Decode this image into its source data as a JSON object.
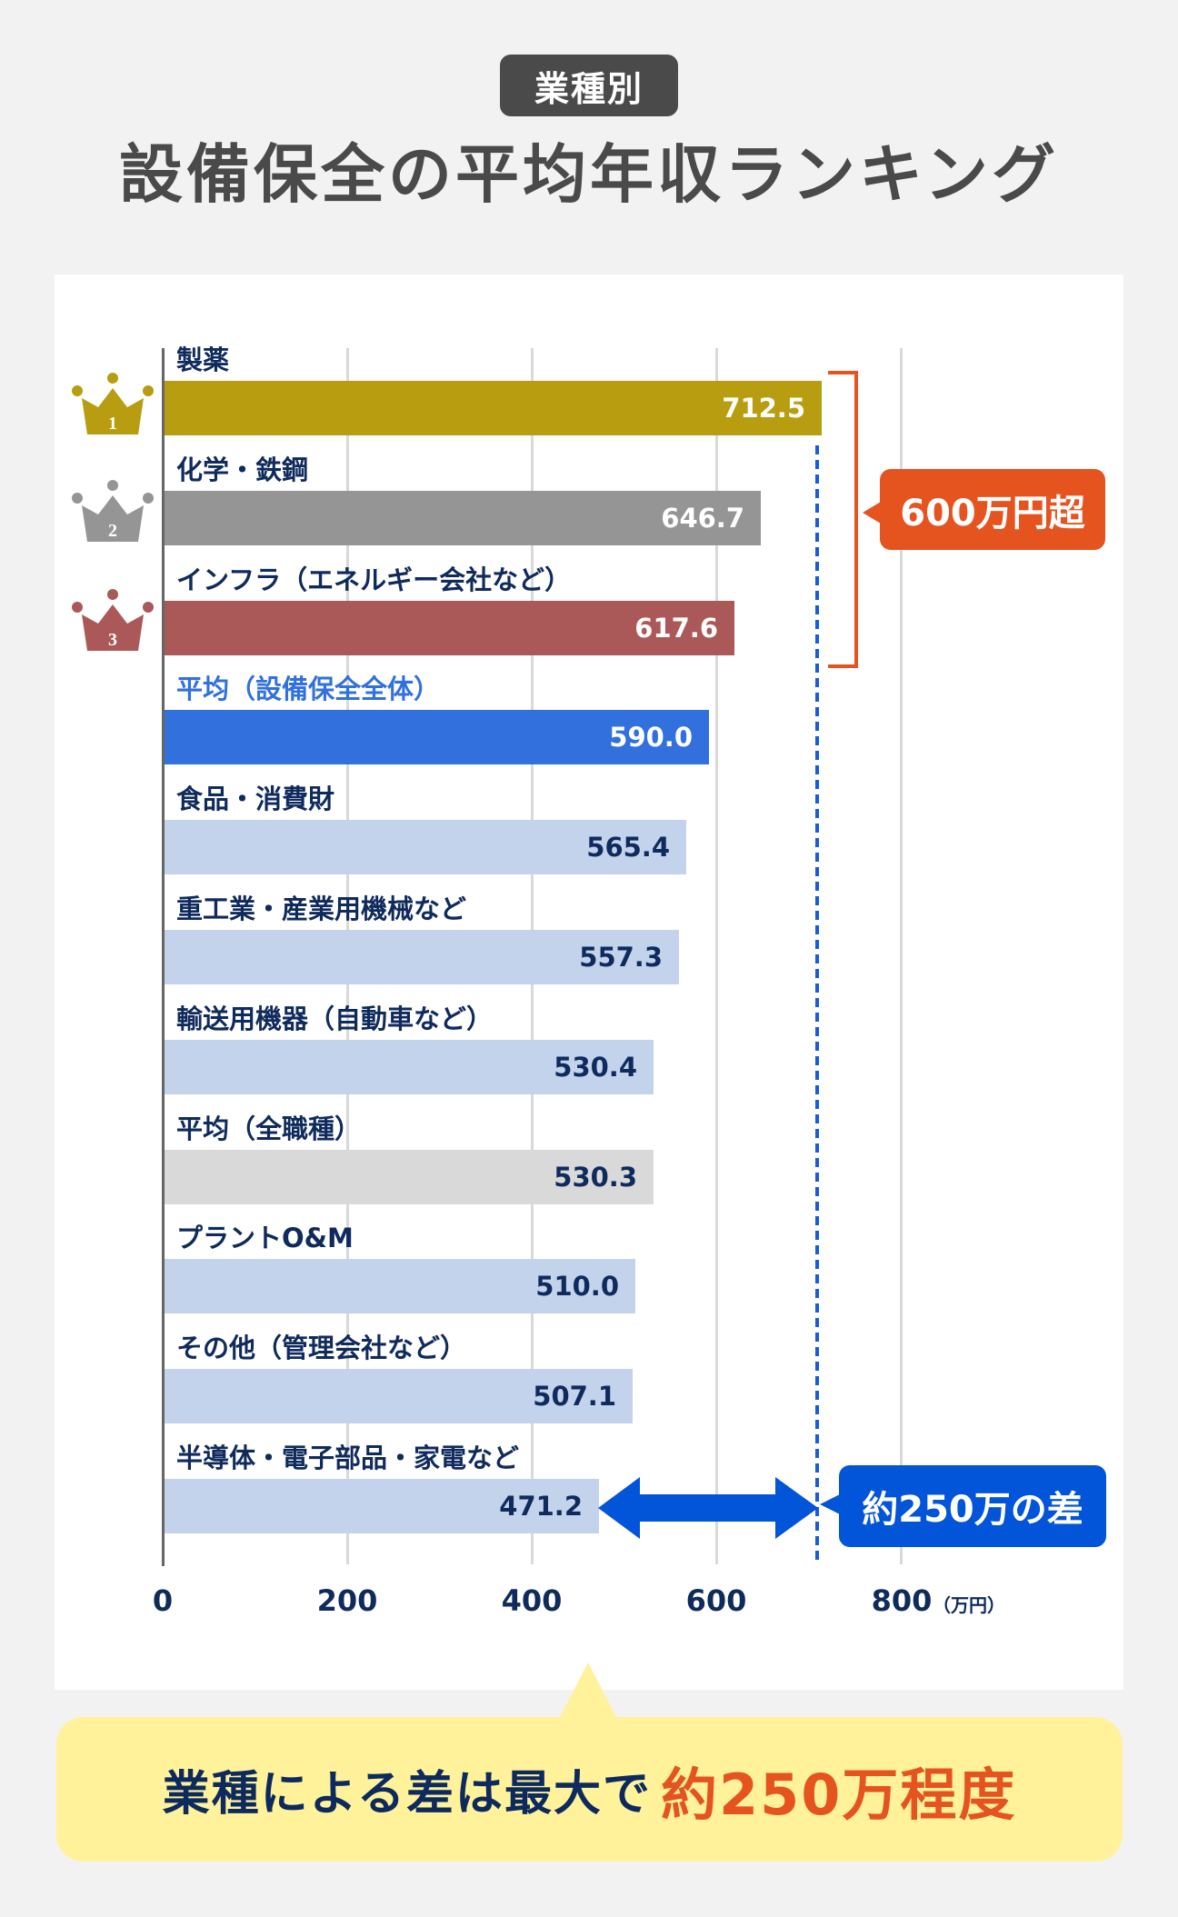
{
  "header": {
    "tag": "業種別",
    "title": "設備保全の平均年収ランキング"
  },
  "colors": {
    "background": "#f2f2f2",
    "panel": "#ffffff",
    "gold": "#b89d10",
    "silver": "#959595",
    "bronze": "#ab5858",
    "avg_blue": "#3170dd",
    "light_blue": "#c3d3ec",
    "avg_gray": "#d9d9d9",
    "orange": "#e5531f",
    "blue": "#0254d8",
    "navy": "#0f2a5c",
    "yellow": "#fff29a"
  },
  "crowns": [
    {
      "rank": "1",
      "color": "#b89d10"
    },
    {
      "rank": "2",
      "color": "#959595"
    },
    {
      "rank": "3",
      "color": "#ab5858"
    }
  ],
  "annotations": {
    "over600_label": "600万円超",
    "gap_label": "約250万の差"
  },
  "axis": {
    "ticks": [
      "0",
      "200",
      "400",
      "600",
      "800"
    ],
    "unit": "（万円）"
  },
  "summary": {
    "lead": "業種による差は最大で",
    "highlight": "約250万程度"
  },
  "chart_data": {
    "type": "bar",
    "orientation": "horizontal",
    "title": "設備保全の平均年収ランキング",
    "subtitle": "業種別",
    "xlabel": "（万円）",
    "ylabel": "",
    "xlim": [
      0,
      800
    ],
    "xticks": [
      0,
      200,
      400,
      600,
      800
    ],
    "grid": true,
    "categories": [
      "製薬",
      "化学・鉄鋼",
      "インフラ（エネルギー会社など）",
      "平均（設備保全全体）",
      "食品・消費財",
      "重工業・産業用機械など",
      "輸送用機器（自動車など）",
      "平均（全職種）",
      "プラントO&M",
      "その他（管理会社など）",
      "半導体・電子部品・家電など"
    ],
    "values": [
      712.5,
      646.7,
      617.6,
      590.0,
      565.4,
      557.3,
      530.4,
      530.3,
      510.0,
      507.1,
      471.2
    ],
    "value_labels": [
      "712.5",
      "646.7",
      "617.6",
      "590.0",
      "565.4",
      "557.3",
      "530.4",
      "530.3",
      "510.0",
      "507.1",
      "471.2"
    ],
    "bar_colors": [
      "#b89d10",
      "#959595",
      "#ab5858",
      "#3170dd",
      "#c3d3ec",
      "#c3d3ec",
      "#c3d3ec",
      "#d9d9d9",
      "#c3d3ec",
      "#c3d3ec",
      "#c3d3ec"
    ],
    "label_colors": [
      "#0f2a5c",
      "#0f2a5c",
      "#0f2a5c",
      "#3170dd",
      "#0f2a5c",
      "#0f2a5c",
      "#0f2a5c",
      "#0f2a5c",
      "#0f2a5c",
      "#0f2a5c",
      "#0f2a5c"
    ],
    "value_text_colors": [
      "#ffffff",
      "#ffffff",
      "#ffffff",
      "#ffffff",
      "#0f2a5c",
      "#0f2a5c",
      "#0f2a5c",
      "#0f2a5c",
      "#0f2a5c",
      "#0f2a5c",
      "#0f2a5c"
    ],
    "annotations": [
      {
        "text": "600万円超",
        "applies_to": [
          "製薬",
          "化学・鉄鋼",
          "インフラ（エネルギー会社など）"
        ]
      },
      {
        "text": "約250万の差",
        "between": [
          "製薬",
          "半導体・電子部品・家電など"
        ]
      },
      {
        "text": "業種による差は最大で約250万程度"
      }
    ]
  }
}
